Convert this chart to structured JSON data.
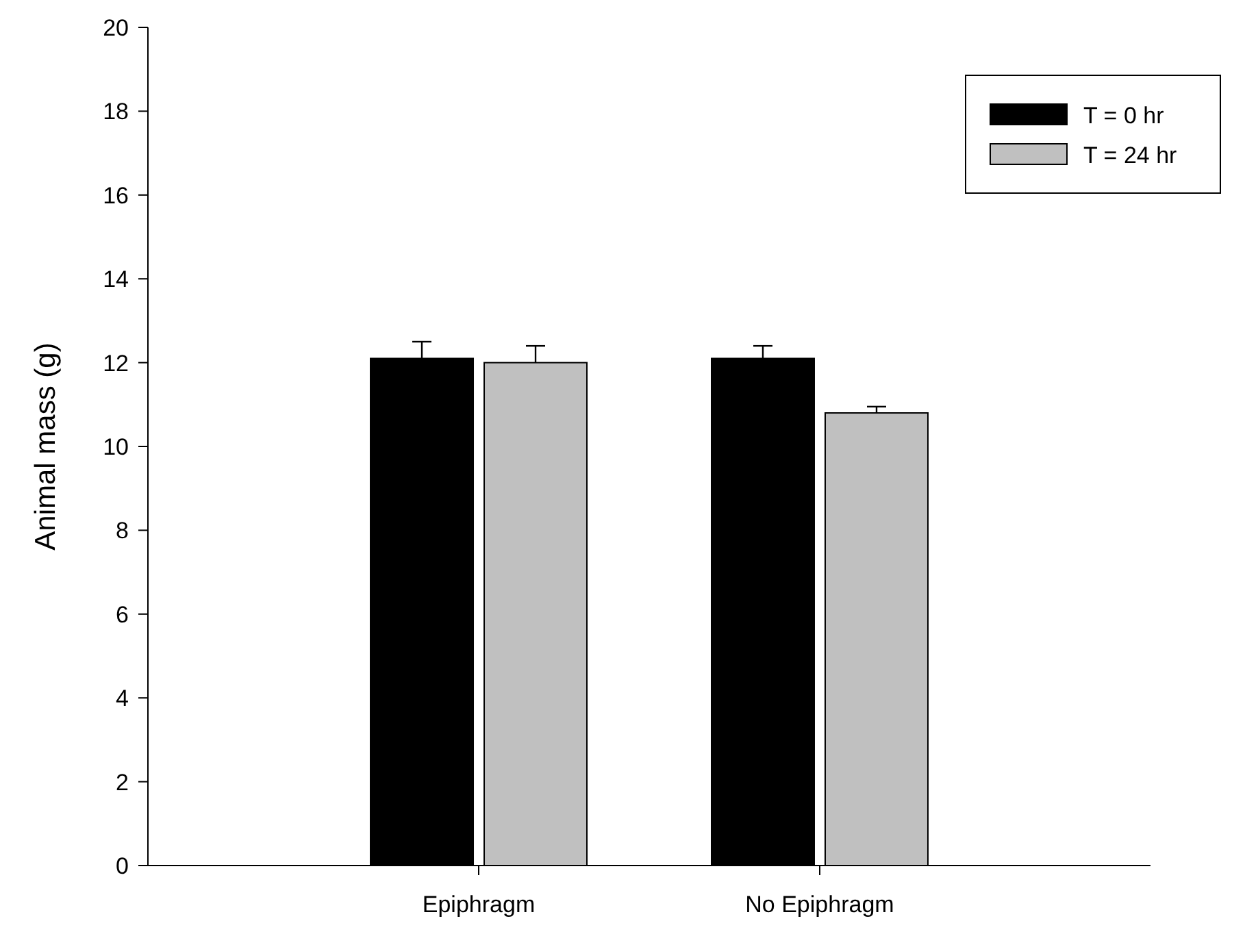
{
  "chart_data": {
    "type": "bar",
    "ylabel": "Animal mass (g)",
    "categories": [
      "Epiphragm",
      "No Epiphragm"
    ],
    "series": [
      {
        "name": "T = 0 hr",
        "color": "#000000",
        "values": [
          12.1,
          12.1
        ],
        "errors": [
          [
            12.1,
            12.5
          ],
          [
            12.1,
            12.4
          ]
        ]
      },
      {
        "name": "T = 24 hr",
        "color": "#c0c0c0",
        "values": [
          12.0,
          10.8
        ],
        "errors": [
          [
            12.0,
            12.4
          ],
          [
            10.8,
            10.95
          ]
        ]
      }
    ],
    "ylim": [
      0,
      20
    ],
    "yticks": [
      0,
      2,
      4,
      6,
      8,
      10,
      12,
      14,
      16,
      18,
      20
    ],
    "grid": false,
    "legend": "top right"
  }
}
